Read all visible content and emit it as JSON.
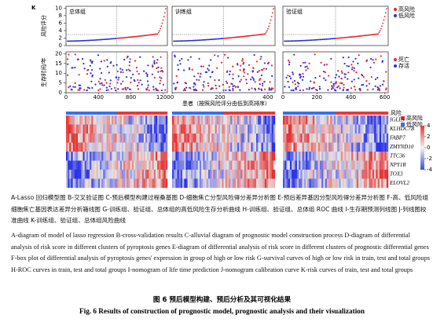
{
  "figure": {
    "panel_label": "K",
    "risk_plot": {
      "y_label": "风险评分",
      "ylim": [
        0,
        10.5
      ],
      "yticks": [
        0,
        2,
        4,
        6,
        8,
        10
      ],
      "legend": [
        "高风险",
        "低风险"
      ]
    },
    "survival_plot": {
      "y_label": "生存时间/年",
      "ylim": [
        0,
        21
      ],
      "yticks": [
        0,
        5,
        10,
        15,
        20
      ],
      "legend": [
        "死亡",
        "存活"
      ]
    },
    "groups": [
      {
        "title": "总体组",
        "xlim": [
          0,
          1250
        ],
        "xticks": [
          0,
          400,
          800,
          1200
        ]
      },
      {
        "title": "训练组",
        "xlim": [
          0,
          430
        ],
        "xticks": [
          0,
          200,
          400
        ]
      },
      {
        "title": "验证组",
        "xlim": [
          0,
          620
        ],
        "xticks": [
          0,
          200,
          400,
          600
        ]
      }
    ],
    "x_label": "患者（按照风险评分由低到高排序）",
    "heatmap": {
      "legend_title": "风险",
      "legend": [
        "高风险",
        "低风险"
      ],
      "genes": [
        "IGLL5",
        "KLHDC7B",
        "FABP7",
        "ZMYND10",
        "TTC36",
        "NPY1R",
        "TOX3",
        "ELOVL2"
      ],
      "scale_ticks": [
        4,
        2,
        0,
        -2,
        -4
      ]
    }
  },
  "caption": {
    "chinese": "A-Lasso 回归模型图 B-交叉验证图 C-预后模型构建过程桑基图 D-细胞焦亡分型风险得分差异分析图 E-预后差异基因分型风险得分差异分析图 F-高、低风险组细胞焦亡基因表达差异分析箱线图 G-训练组、验证组、总体组的高低风险生存分析曲线 H-训练组、验证组、总体组 ROC 曲线 I-生存期预测列线图 J-列线图校准曲线 K-训练组、验证组、总体组风险曲线",
    "english": "A-diagram of model of lasso regression B-cross-validation results C-alluvial diagram of prognostic model construction process D-diagram of differential analysis of risk score in different clusters of pyroptosis genes E-diagram of differential analysis of risk score in different clusters of prognostic differential genes F-box plot of differential analysis of pyroptosis genes' expression in group of high or low risk G-survival curves of high or low risk in train, test and total groups H-ROC curves in train, test and total groups I-nomogram of life time prediction J-nomogram calibration curve K-risk curves of train, test and total groups",
    "title_cn": "图 6 预后模型构建、预后分析及其可视化结果",
    "title_en": "Fig. 6 Results of construction of prognostic model, prognostic analysis and their visualization"
  }
}
